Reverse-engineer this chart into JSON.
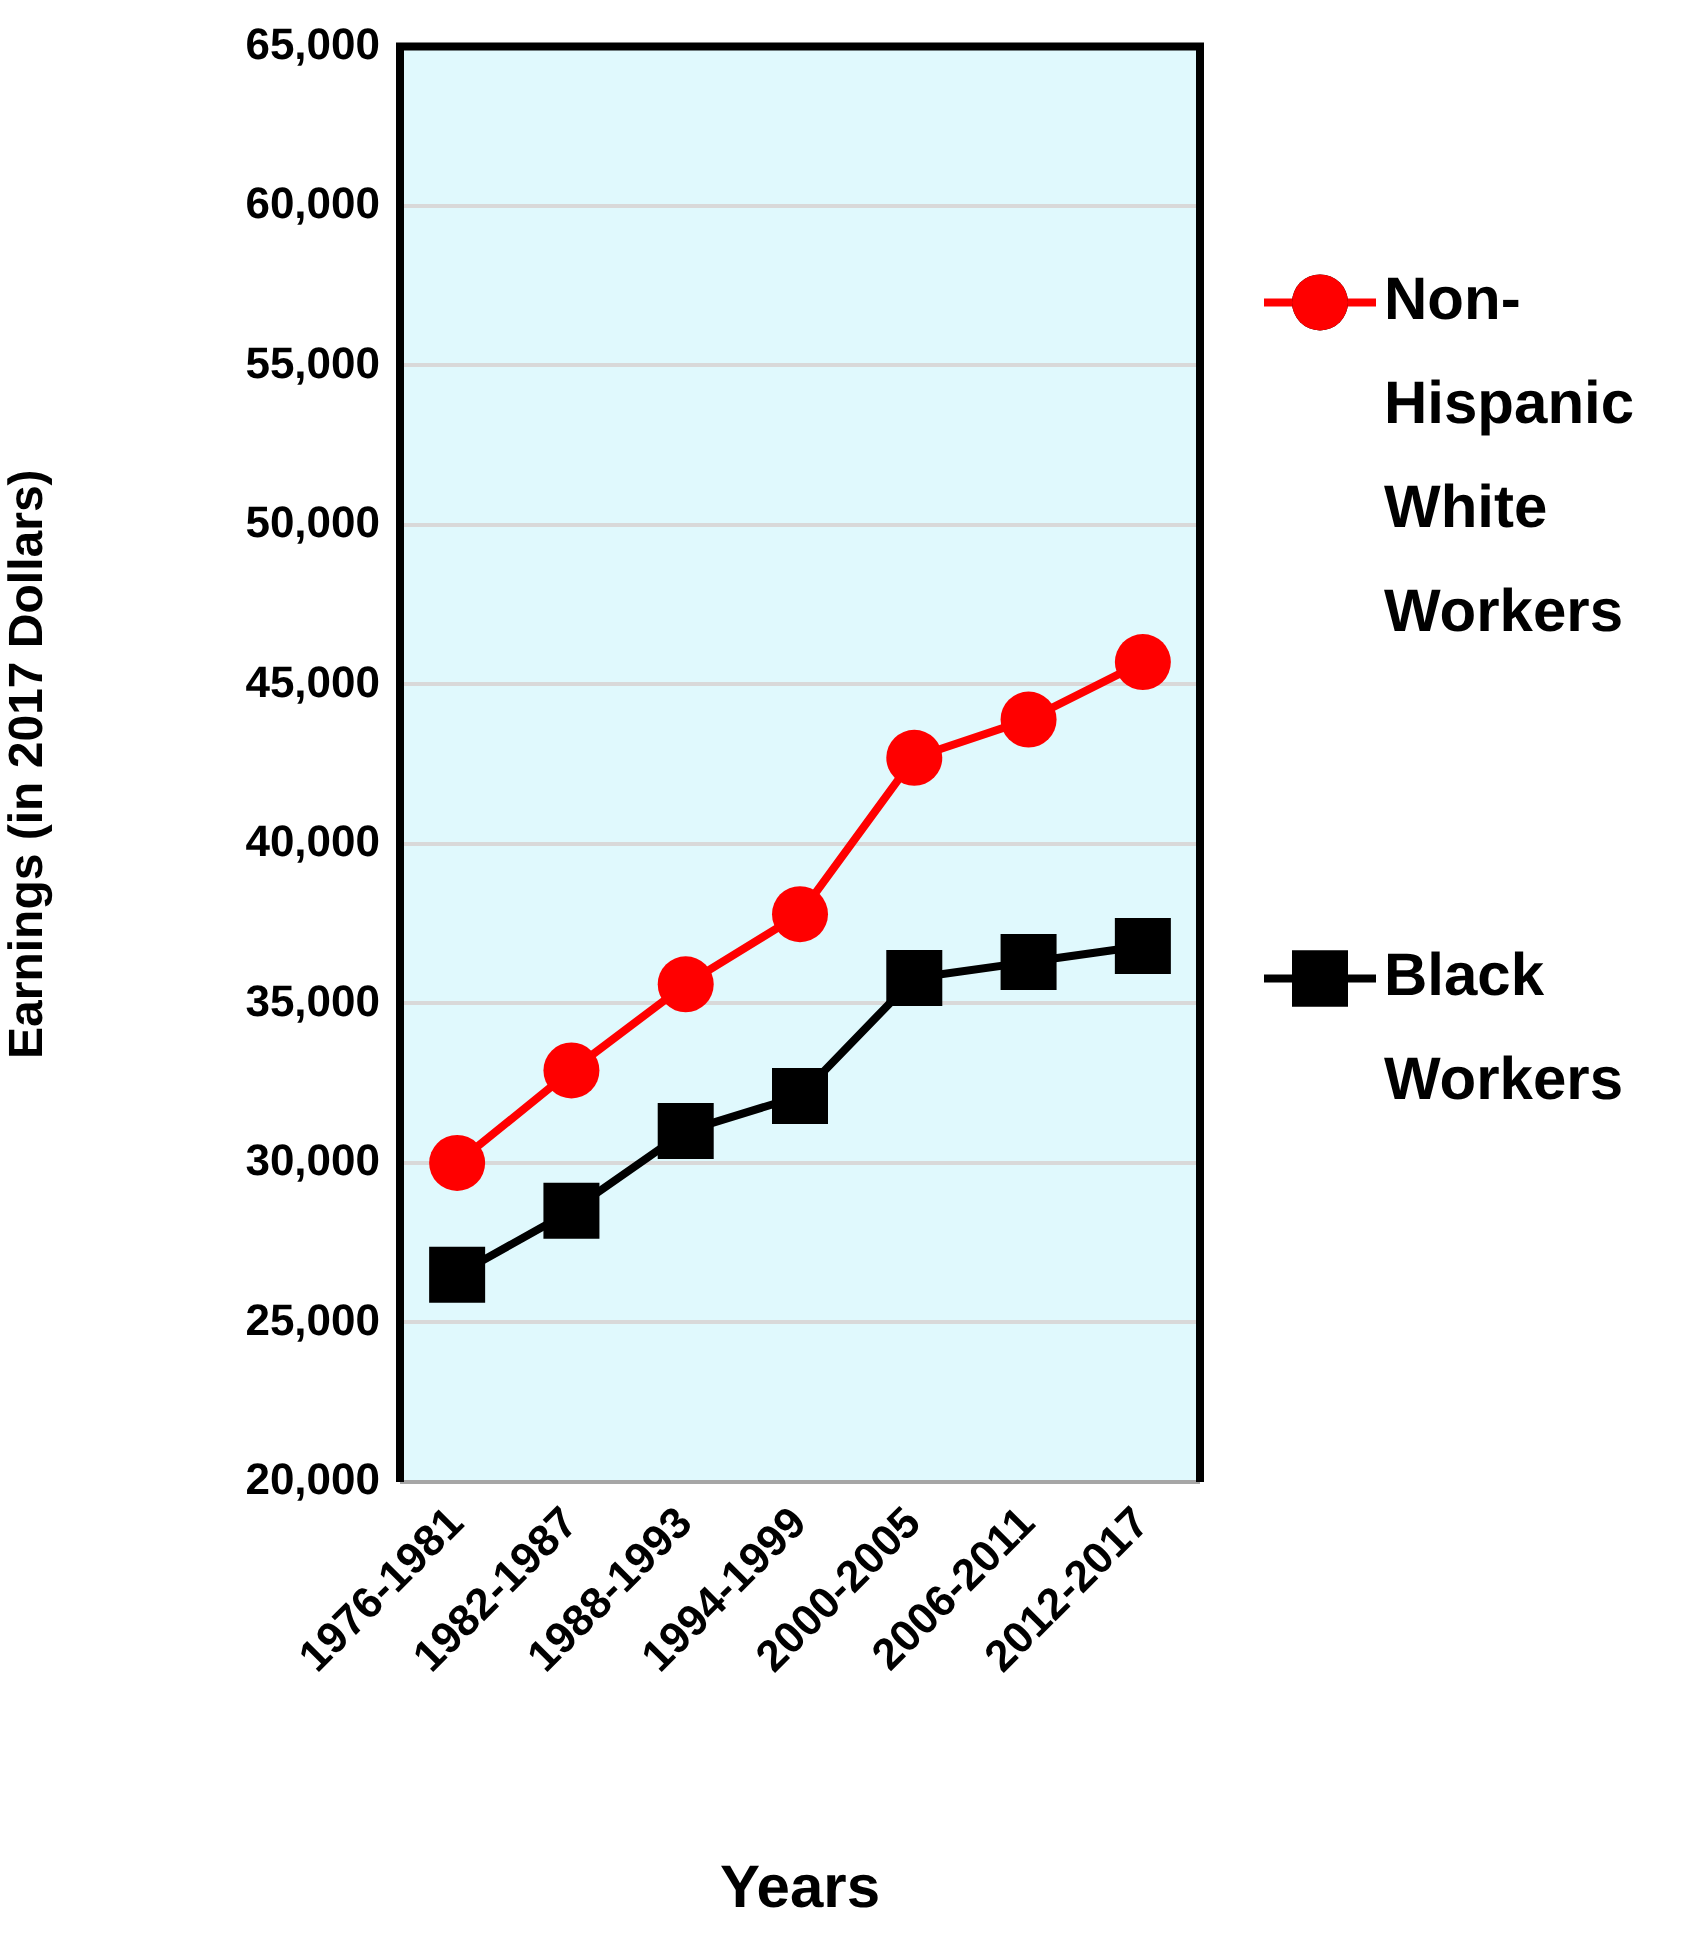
{
  "chart_data": {
    "type": "line",
    "xlabel": "Years",
    "ylabel": "Earnings (in 2017 Dollars)",
    "categories": [
      "1976-1981",
      "1982-1987",
      "1988-1993",
      "1994-1999",
      "2000-2005",
      "2006-2011",
      "2012-2017"
    ],
    "series": [
      {
        "name": "Non-Hispanic White Workers",
        "color": "#ff0000",
        "marker": "circle",
        "values": [
          30000,
          32900,
          35600,
          37800,
          42700,
          43900,
          45700
        ]
      },
      {
        "name": "Black Workers",
        "color": "#000000",
        "marker": "square",
        "values": [
          26500,
          28500,
          31000,
          32100,
          35800,
          36300,
          36800
        ]
      }
    ],
    "ylim": [
      20000,
      65000
    ],
    "yticks": [
      {
        "value": 20000,
        "label": "20,000"
      },
      {
        "value": 25000,
        "label": "25,000"
      },
      {
        "value": 30000,
        "label": "30,000"
      },
      {
        "value": 35000,
        "label": "35,000"
      },
      {
        "value": 40000,
        "label": "40,000"
      },
      {
        "value": 45000,
        "label": "45,000"
      },
      {
        "value": 50000,
        "label": "50,000"
      },
      {
        "value": 55000,
        "label": "55,000"
      },
      {
        "value": 60000,
        "label": "60,000"
      },
      {
        "value": 65000,
        "label": "65,000"
      }
    ],
    "grid": "y",
    "legend": "right",
    "line_style": "solid"
  }
}
